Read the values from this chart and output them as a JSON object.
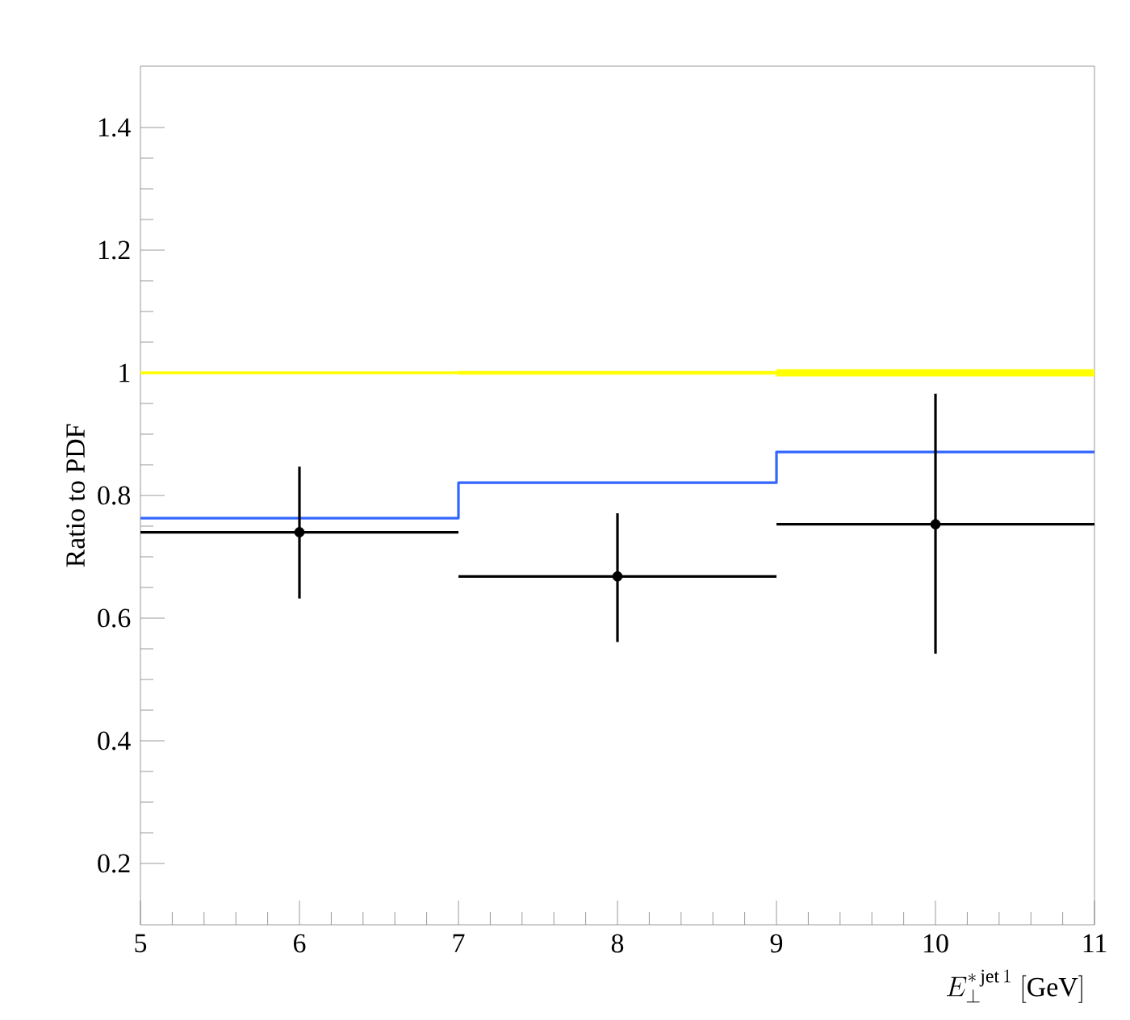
{
  "chart_data": {
    "type": "step",
    "xlabel": "E_\\perp^{*\\,\\mathrm{jet}\\,1}\\ [\\mathrm{GeV}]",
    "ylabel": "Ratio to PDF",
    "xlim": [
      5,
      11
    ],
    "ylim": [
      0.1,
      1.5
    ],
    "xticks": [
      5,
      6,
      7,
      8,
      9,
      10,
      11
    ],
    "yticks": [
      0.2,
      0.4,
      0.6,
      0.8,
      1,
      1.2,
      1.4
    ],
    "series": [
      {
        "color": "#ffff00",
        "x": [
          5,
          7,
          9,
          11
        ],
        "values": [
          1,
          1,
          1,
          1
        ],
        "lower": [
          0.998,
          0.997,
          0.994,
          0.994
        ],
        "upper": [
          1.002,
          1.003,
          1.006,
          1.006
        ],
        "marker": "none"
      },
      {
        "color": "#3366ff",
        "x": [
          5,
          7,
          9,
          11
        ],
        "values": [
          0.763,
          0.821,
          0.871,
          0.871
        ],
        "marker": "none"
      },
      {
        "type": "scatter",
        "color": "#000000",
        "x": [
          6,
          8,
          10
        ],
        "values": [
          0.74,
          0.668,
          0.753
        ],
        "xerrors": [
          1,
          1,
          1
        ],
        "errors": [
          [
            0.632,
            0.847
          ],
          [
            0.561,
            0.771
          ],
          [
            0.542,
            0.966
          ]
        ],
        "marker": "circle"
      }
    ]
  }
}
